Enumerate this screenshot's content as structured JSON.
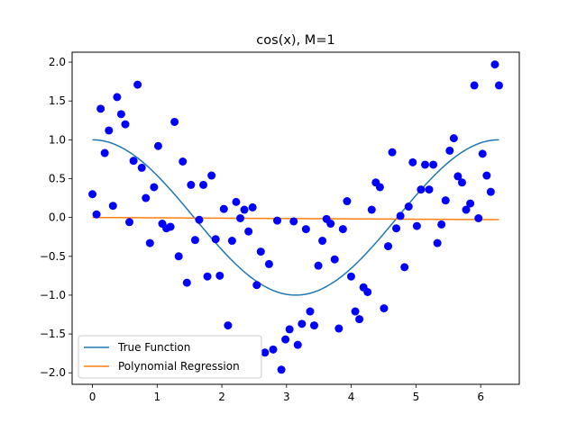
{
  "chart_data": {
    "type": "scatter",
    "title": "cos(x), M=1",
    "xlabel": "",
    "ylabel": "",
    "xlim": [
      -0.314,
      6.597
    ],
    "ylim": [
      -2.148,
      2.128
    ],
    "xticks": [
      0,
      1,
      2,
      3,
      4,
      5,
      6
    ],
    "yticks": [
      -2.0,
      -1.5,
      -1.0,
      -0.5,
      0.0,
      0.5,
      1.0,
      1.5,
      2.0
    ],
    "xtick_labels": [
      "0",
      "1",
      "2",
      "3",
      "4",
      "5",
      "6"
    ],
    "ytick_labels": [
      "−2.0",
      "−1.5",
      "−1.0",
      "−0.5",
      "0.0",
      "0.5",
      "1.0",
      "1.5",
      "2.0"
    ],
    "grid": false,
    "legend_position": "lower-left",
    "points": {
      "color": "#0000ff",
      "x": [
        0.0,
        0.063,
        0.127,
        0.19,
        0.254,
        0.317,
        0.381,
        0.444,
        0.508,
        0.571,
        0.635,
        0.698,
        0.762,
        0.825,
        0.889,
        0.952,
        1.016,
        1.079,
        1.143,
        1.206,
        1.269,
        1.333,
        1.396,
        1.46,
        1.523,
        1.587,
        1.65,
        1.714,
        1.777,
        1.841,
        1.904,
        1.968,
        2.031,
        2.095,
        2.158,
        2.221,
        2.285,
        2.348,
        2.412,
        2.475,
        2.539,
        2.602,
        2.666,
        2.729,
        2.793,
        2.856,
        2.92,
        2.983,
        3.046,
        3.11,
        3.173,
        3.237,
        3.3,
        3.364,
        3.427,
        3.491,
        3.554,
        3.618,
        3.681,
        3.744,
        3.808,
        3.871,
        3.935,
        3.998,
        4.062,
        4.125,
        4.189,
        4.252,
        4.316,
        4.379,
        4.443,
        4.506,
        4.57,
        4.633,
        4.696,
        4.76,
        4.823,
        4.887,
        4.95,
        5.014,
        5.077,
        5.141,
        5.204,
        5.268,
        5.331,
        5.394,
        5.458,
        5.521,
        5.585,
        5.648,
        5.712,
        5.775,
        5.839,
        5.902,
        5.966,
        6.029,
        6.093,
        6.156,
        6.22,
        6.283
      ],
      "y": [
        0.3,
        0.04,
        1.4,
        0.83,
        1.12,
        0.15,
        1.55,
        1.33,
        1.2,
        -0.06,
        0.73,
        1.71,
        0.64,
        0.25,
        -0.33,
        0.39,
        0.92,
        -0.08,
        -0.14,
        -0.12,
        1.23,
        -0.5,
        0.72,
        -0.84,
        0.42,
        -0.29,
        -0.03,
        0.42,
        -0.76,
        0.54,
        -0.28,
        -0.75,
        0.11,
        -1.39,
        -0.3,
        0.2,
        -0.01,
        0.1,
        -0.18,
        0.13,
        -0.87,
        -0.44,
        -1.74,
        -0.6,
        -1.7,
        -0.04,
        -1.96,
        -1.57,
        -1.44,
        -0.05,
        -1.64,
        -1.37,
        -0.15,
        -1.21,
        -1.39,
        -0.62,
        -0.3,
        -0.02,
        -0.08,
        -0.54,
        -1.43,
        -0.15,
        0.21,
        -0.76,
        -1.21,
        -1.31,
        -0.9,
        -0.96,
        0.1,
        0.45,
        0.39,
        -1.17,
        -0.37,
        0.84,
        -0.14,
        0.02,
        -0.64,
        0.14,
        0.71,
        -0.11,
        0.36,
        0.68,
        0.36,
        0.68,
        -0.33,
        -0.09,
        0.22,
        0.86,
        1.02,
        0.53,
        0.45,
        0.1,
        0.18,
        1.7,
        -0.01,
        0.82,
        0.54,
        0.33,
        1.97,
        1.7
      ]
    },
    "series": [
      {
        "name": "True Function",
        "color": "#1f77b4",
        "function": "cos",
        "x_range": [
          0,
          6.283
        ]
      },
      {
        "name": "Polynomial Regression",
        "color": "#ff7f0e",
        "intercept": 0.0,
        "slope": -0.0045,
        "x_range": [
          0,
          6.283
        ]
      }
    ]
  }
}
